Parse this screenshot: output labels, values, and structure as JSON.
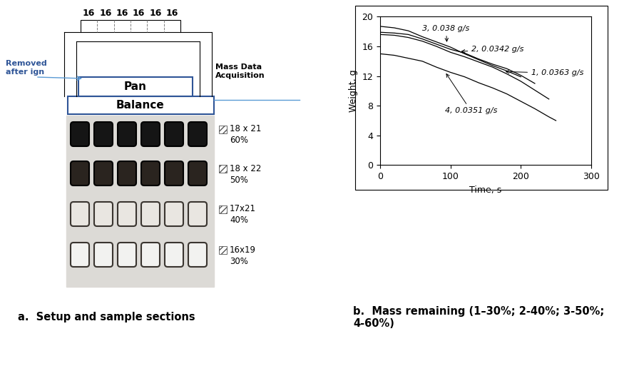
{
  "diagram": {
    "top_labels": [
      "16",
      "16",
      "16",
      "16",
      "16",
      "16"
    ],
    "removed_note": "Removed\nafter ign",
    "pan": "Pan",
    "balance": "Balance",
    "acquisition": "Mass Data\nAcquisition",
    "samples": [
      {
        "size": "18 x 21",
        "percent": "60%"
      },
      {
        "size": "18 x 22",
        "percent": "50%"
      },
      {
        "size": "17x21",
        "percent": "40%"
      },
      {
        "size": "16x19",
        "percent": "30%"
      }
    ],
    "caption_a": "a.  Setup and sample sections",
    "caption_b": "b.  Mass remaining (1–30%; 2-40%; 3-50%; 4-60%)"
  },
  "chart_data": {
    "type": "line",
    "x_label": "Time, s",
    "y_label": "Weight, g",
    "xlim": [
      0,
      300
    ],
    "xticks": [
      0,
      100,
      200,
      300
    ],
    "ylim": [
      0,
      20
    ],
    "yticks": [
      0,
      4,
      8,
      12,
      16,
      20
    ],
    "grid": false,
    "series": [
      {
        "name": "1",
        "label": "1, 0.0363 g/s",
        "color": "#000000",
        "x": [
          0,
          20,
          40,
          60,
          80,
          100,
          120,
          140,
          160,
          180,
          200,
          220,
          240
        ],
        "values": [
          17.6,
          17.5,
          17.2,
          16.7,
          16.0,
          15.2,
          14.6,
          13.9,
          13.2,
          12.3,
          11.3,
          10.1,
          8.9
        ]
      },
      {
        "name": "2",
        "label": "2, 0.0342 g/s",
        "color": "#000000",
        "x": [
          0,
          20,
          40,
          60,
          80,
          100,
          120,
          140,
          160,
          180,
          200,
          220
        ],
        "values": [
          17.9,
          17.8,
          17.6,
          17.0,
          16.3,
          15.6,
          15.1,
          14.3,
          13.6,
          13.0,
          12.1,
          11.0
        ]
      },
      {
        "name": "3",
        "label": "3, 0.038 g/s",
        "color": "#000000",
        "x": [
          0,
          20,
          40,
          60,
          80,
          100,
          120,
          140,
          160,
          180,
          200
        ],
        "values": [
          18.7,
          18.5,
          18.1,
          17.3,
          16.6,
          15.9,
          15.0,
          14.2,
          13.4,
          12.7,
          11.9
        ]
      },
      {
        "name": "4",
        "label": "4, 0.0351 g/s",
        "color": "#000000",
        "x": [
          0,
          20,
          40,
          60,
          80,
          100,
          120,
          140,
          160,
          180,
          200,
          220,
          240,
          250
        ],
        "values": [
          15.0,
          14.8,
          14.4,
          14.0,
          13.2,
          12.5,
          11.9,
          11.1,
          10.4,
          9.6,
          8.6,
          7.6,
          6.5,
          6.0
        ]
      }
    ]
  }
}
